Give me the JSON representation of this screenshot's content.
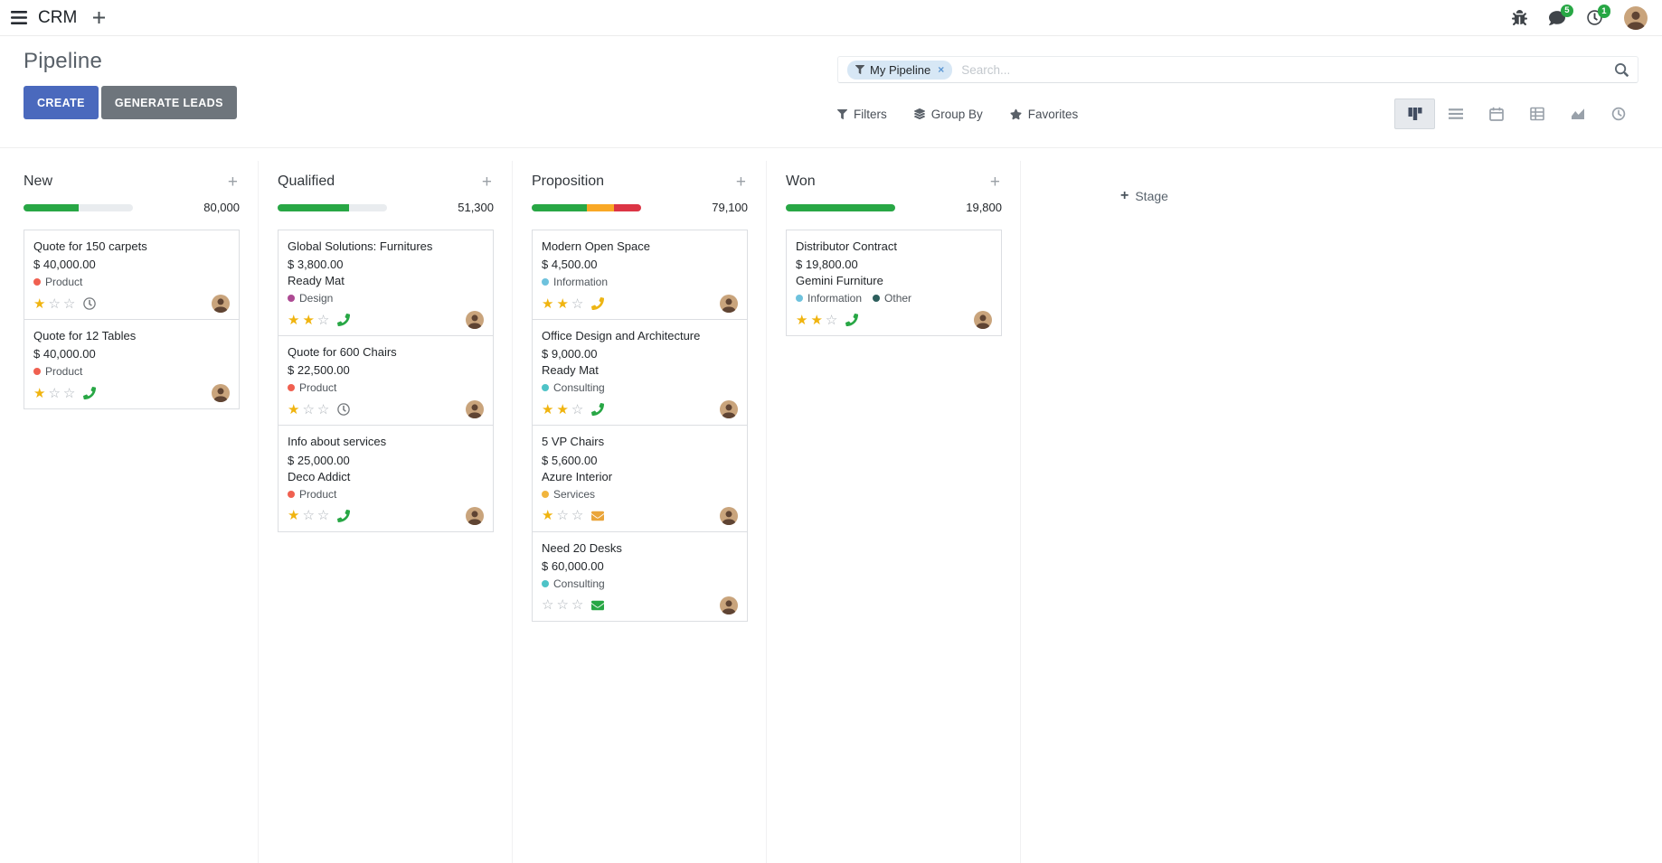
{
  "theme": {
    "primary": "#4a69bd",
    "secondary": "#6e757c",
    "badge": "#28a745",
    "facet_bg": "#d7e7f5",
    "star_filled": "#f0b40f",
    "star_empty": "#adb3b9",
    "success": "#28a745",
    "warning": "#f9a825",
    "danger": "#dc3545"
  },
  "icons": {
    "add": "+",
    "remove_facet": "×",
    "star_filled": "★",
    "star_empty": "☆"
  },
  "navbar": {
    "app_name": "CRM",
    "messages_badge": "5",
    "activities_badge": "1"
  },
  "control_panel": {
    "title": "Pipeline",
    "create_label": "CREATE",
    "generate_leads_label": "GENERATE LEADS",
    "search_facet": "My Pipeline",
    "search_placeholder": "Search...",
    "filters_label": "Filters",
    "group_by_label": "Group By",
    "favorites_label": "Favorites",
    "active_view": "kanban",
    "views": [
      "kanban",
      "list",
      "calendar",
      "pivot",
      "graph",
      "activity"
    ]
  },
  "board": {
    "add_stage_label": "Stage",
    "columns": [
      {
        "name": "New",
        "amount_total": "80,000",
        "progress": [
          {
            "color": "#28a745",
            "pct": 50
          }
        ],
        "cards": [
          {
            "title": "Quote for 150 carpets",
            "amount": "$ 40,000.00",
            "partner": null,
            "tags": [
              {
                "label": "Product",
                "color": "#f06050"
              }
            ],
            "stars_filled": 1,
            "stars_total": 3,
            "activity": {
              "type": "clock",
              "color": "#75797d"
            }
          },
          {
            "title": "Quote for 12 Tables",
            "amount": "$ 40,000.00",
            "partner": null,
            "tags": [
              {
                "label": "Product",
                "color": "#f06050"
              }
            ],
            "stars_filled": 1,
            "stars_total": 3,
            "activity": {
              "type": "phone",
              "color": "#28a745"
            }
          }
        ]
      },
      {
        "name": "Qualified",
        "amount_total": "51,300",
        "progress": [
          {
            "color": "#28a745",
            "pct": 65
          }
        ],
        "cards": [
          {
            "title": "Global Solutions: Furnitures",
            "amount": "$ 3,800.00",
            "partner": "Ready Mat",
            "tags": [
              {
                "label": "Design",
                "color": "#ad4a93"
              }
            ],
            "stars_filled": 2,
            "stars_total": 3,
            "activity": {
              "type": "phone",
              "color": "#28a745"
            }
          },
          {
            "title": "Quote for 600 Chairs",
            "amount": "$ 22,500.00",
            "partner": null,
            "tags": [
              {
                "label": "Product",
                "color": "#f06050"
              }
            ],
            "stars_filled": 1,
            "stars_total": 3,
            "activity": {
              "type": "clock",
              "color": "#75797d"
            }
          },
          {
            "title": "Info about services",
            "amount": "$ 25,000.00",
            "partner": "Deco Addict",
            "tags": [
              {
                "label": "Product",
                "color": "#f06050"
              }
            ],
            "stars_filled": 1,
            "stars_total": 3,
            "activity": {
              "type": "phone",
              "color": "#28a745"
            }
          }
        ]
      },
      {
        "name": "Proposition",
        "amount_total": "79,100",
        "progress": [
          {
            "color": "#28a745",
            "pct": 50
          },
          {
            "color": "#f9a825",
            "pct": 25
          },
          {
            "color": "#dc3545",
            "pct": 25
          }
        ],
        "cards": [
          {
            "title": "Modern Open Space",
            "amount": "$ 4,500.00",
            "partner": null,
            "tags": [
              {
                "label": "Information",
                "color": "#6ec2dd"
              }
            ],
            "stars_filled": 2,
            "stars_total": 3,
            "activity": {
              "type": "phone",
              "color": "#edb514"
            }
          },
          {
            "title": "Office Design and Architecture",
            "amount": "$ 9,000.00",
            "partner": "Ready Mat",
            "tags": [
              {
                "label": "Consulting",
                "color": "#4ec3c7"
              }
            ],
            "stars_filled": 2,
            "stars_total": 3,
            "activity": {
              "type": "phone",
              "color": "#28a745"
            }
          },
          {
            "title": "5 VP Chairs",
            "amount": "$ 5,600.00",
            "partner": "Azure Interior",
            "tags": [
              {
                "label": "Services",
                "color": "#f1b53d"
              }
            ],
            "stars_filled": 1,
            "stars_total": 3,
            "activity": {
              "type": "envelope",
              "color": "#eaa53a"
            }
          },
          {
            "title": "Need 20 Desks",
            "amount": "$ 60,000.00",
            "partner": null,
            "tags": [
              {
                "label": "Consulting",
                "color": "#4ec3c7"
              }
            ],
            "stars_filled": 0,
            "stars_total": 3,
            "activity": {
              "type": "envelope",
              "color": "#28a745"
            }
          }
        ]
      },
      {
        "name": "Won",
        "amount_total": "19,800",
        "progress": [
          {
            "color": "#28a745",
            "pct": 100
          }
        ],
        "cards": [
          {
            "title": "Distributor Contract",
            "amount": "$ 19,800.00",
            "partner": "Gemini Furniture",
            "tags": [
              {
                "label": "Information",
                "color": "#6ec2dd"
              },
              {
                "label": "Other",
                "color": "#2d5f5d"
              }
            ],
            "stars_filled": 2,
            "stars_total": 3,
            "activity": {
              "type": "phone",
              "color": "#28a745"
            }
          }
        ]
      }
    ]
  }
}
